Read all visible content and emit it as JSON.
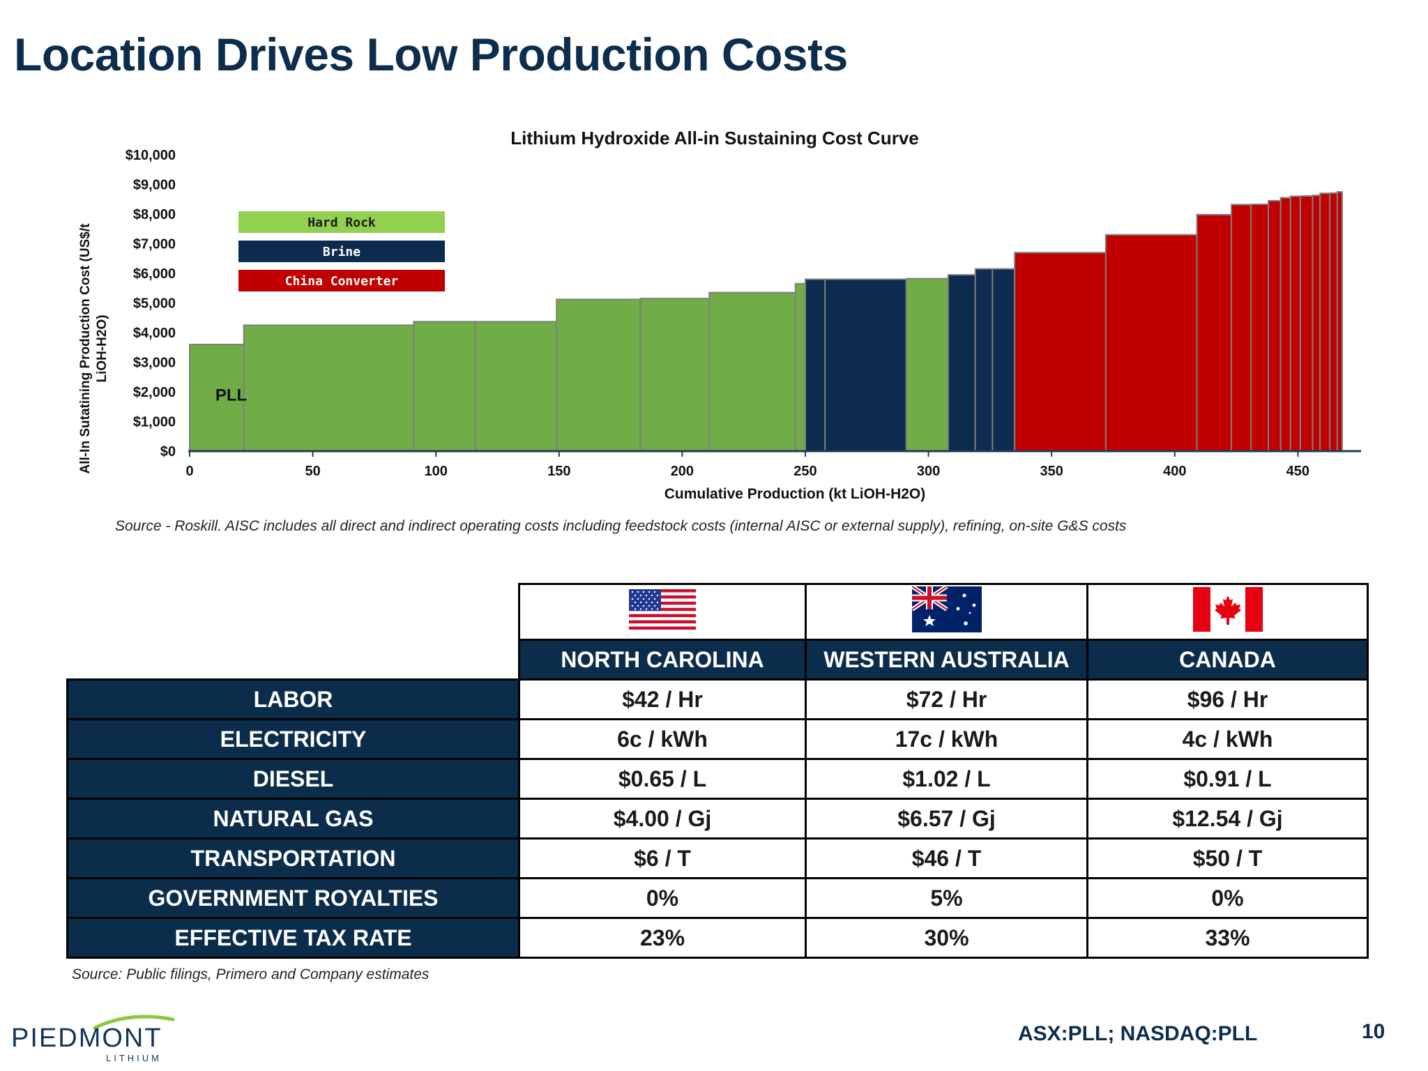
{
  "slide": {
    "title": "Location Drives Low Production Costs",
    "ticker": "ASX:PLL; NASDAQ:PLL",
    "page_number": "10",
    "logo_text": "PIEDMONT",
    "logo_sub": "LITHIUM"
  },
  "chart_data": {
    "type": "bar",
    "title": "Lithium Hydroxide All-in Sustaining Cost Curve",
    "xlabel": "Cumulative Production (kt LiOH-H2O)",
    "ylabel": "All-In Sutatining Production Cost (US$/t LiOH-H2O)",
    "xlim": [
      0,
      470
    ],
    "ylim": [
      0,
      10000
    ],
    "x_ticks": [
      "0",
      "50",
      "100",
      "150",
      "200",
      "250",
      "300",
      "350",
      "400",
      "450"
    ],
    "x_tick_values": [
      0,
      50,
      100,
      150,
      200,
      250,
      300,
      350,
      400,
      450
    ],
    "y_ticks": [
      "$0",
      "$1,000",
      "$2,000",
      "$3,000",
      "$4,000",
      "$5,000",
      "$6,000",
      "$7,000",
      "$8,000",
      "$9,000",
      "$10,000"
    ],
    "y_tick_values": [
      0,
      1000,
      2000,
      3000,
      4000,
      5000,
      6000,
      7000,
      8000,
      9000,
      10000
    ],
    "legend": {
      "placement": "top-left",
      "entries": [
        {
          "name": "Hard Rock",
          "color": "#92d050"
        },
        {
          "name": "Brine",
          "color": "#0d2b4e"
        },
        {
          "name": "China Converter",
          "color": "#c00000"
        }
      ]
    },
    "series_colors": {
      "hard_rock": "#70ad47",
      "brine": "#0d2b4e",
      "china_converter": "#c00000"
    },
    "annotations": [
      {
        "text": "PLL",
        "x": 11,
        "y": 1900
      }
    ],
    "bars": [
      {
        "x0": 0,
        "x1": 22,
        "cost": 3600,
        "type": "hard_rock"
      },
      {
        "x0": 22,
        "x1": 91,
        "cost": 4250,
        "type": "hard_rock"
      },
      {
        "x0": 91,
        "x1": 116,
        "cost": 4370,
        "type": "hard_rock"
      },
      {
        "x0": 116,
        "x1": 149,
        "cost": 4370,
        "type": "hard_rock"
      },
      {
        "x0": 149,
        "x1": 183,
        "cost": 5120,
        "type": "hard_rock"
      },
      {
        "x0": 183,
        "x1": 211,
        "cost": 5150,
        "type": "hard_rock"
      },
      {
        "x0": 211,
        "x1": 246,
        "cost": 5350,
        "type": "hard_rock"
      },
      {
        "x0": 246,
        "x1": 250,
        "cost": 5650,
        "type": "hard_rock"
      },
      {
        "x0": 250,
        "x1": 258,
        "cost": 5800,
        "type": "brine"
      },
      {
        "x0": 258,
        "x1": 291,
        "cost": 5800,
        "type": "brine"
      },
      {
        "x0": 291,
        "x1": 308,
        "cost": 5820,
        "type": "hard_rock"
      },
      {
        "x0": 308,
        "x1": 319,
        "cost": 5950,
        "type": "brine"
      },
      {
        "x0": 319,
        "x1": 326,
        "cost": 6150,
        "type": "brine"
      },
      {
        "x0": 326,
        "x1": 335,
        "cost": 6150,
        "type": "brine"
      },
      {
        "x0": 335,
        "x1": 372,
        "cost": 6700,
        "type": "china_converter"
      },
      {
        "x0": 372,
        "x1": 409,
        "cost": 7300,
        "type": "china_converter"
      },
      {
        "x0": 409,
        "x1": 423,
        "cost": 7980,
        "type": "china_converter"
      },
      {
        "x0": 423,
        "x1": 431,
        "cost": 8320,
        "type": "china_converter"
      },
      {
        "x0": 431,
        "x1": 438,
        "cost": 8330,
        "type": "china_converter"
      },
      {
        "x0": 438,
        "x1": 443,
        "cost": 8450,
        "type": "china_converter"
      },
      {
        "x0": 443,
        "x1": 447,
        "cost": 8550,
        "type": "china_converter"
      },
      {
        "x0": 447,
        "x1": 451,
        "cost": 8600,
        "type": "china_converter"
      },
      {
        "x0": 451,
        "x1": 456,
        "cost": 8610,
        "type": "china_converter"
      },
      {
        "x0": 456,
        "x1": 459,
        "cost": 8630,
        "type": "china_converter"
      },
      {
        "x0": 459,
        "x1": 463,
        "cost": 8700,
        "type": "china_converter"
      },
      {
        "x0": 463,
        "x1": 466,
        "cost": 8710,
        "type": "china_converter"
      },
      {
        "x0": 466,
        "x1": 468,
        "cost": 8750,
        "type": "china_converter"
      }
    ]
  },
  "chart_source": "Source - Roskill.  AISC includes all direct and indirect operating costs including feedstock costs (internal AISC or external supply), refining, on-site G&S costs",
  "table": {
    "flags": [
      "us-flag",
      "australia-flag",
      "canada-flag"
    ],
    "columns": [
      "NORTH CAROLINA",
      "WESTERN AUSTRALIA",
      "CANADA"
    ],
    "rows": [
      {
        "label": "LABOR",
        "values": [
          "$42 / Hr",
          "$72 / Hr",
          "$96 / Hr"
        ]
      },
      {
        "label": "ELECTRICITY",
        "values": [
          "6c / kWh",
          "17c / kWh",
          "4c / kWh"
        ]
      },
      {
        "label": "DIESEL",
        "values": [
          "$0.65 / L",
          "$1.02 / L",
          "$0.91 / L"
        ]
      },
      {
        "label": "NATURAL GAS",
        "values": [
          "$4.00 / Gj",
          "$6.57 / Gj",
          "$12.54 / Gj"
        ]
      },
      {
        "label": "TRANSPORTATION",
        "values": [
          "$6 / T",
          "$46 / T",
          "$50 / T"
        ]
      },
      {
        "label": "GOVERNMENT ROYALTIES",
        "values": [
          "0%",
          "5%",
          "0%"
        ]
      },
      {
        "label": "EFFECTIVE TAX RATE",
        "values": [
          "23%",
          "30%",
          "33%"
        ]
      }
    ],
    "source": "Source: Public filings, Primero and Company estimates"
  }
}
